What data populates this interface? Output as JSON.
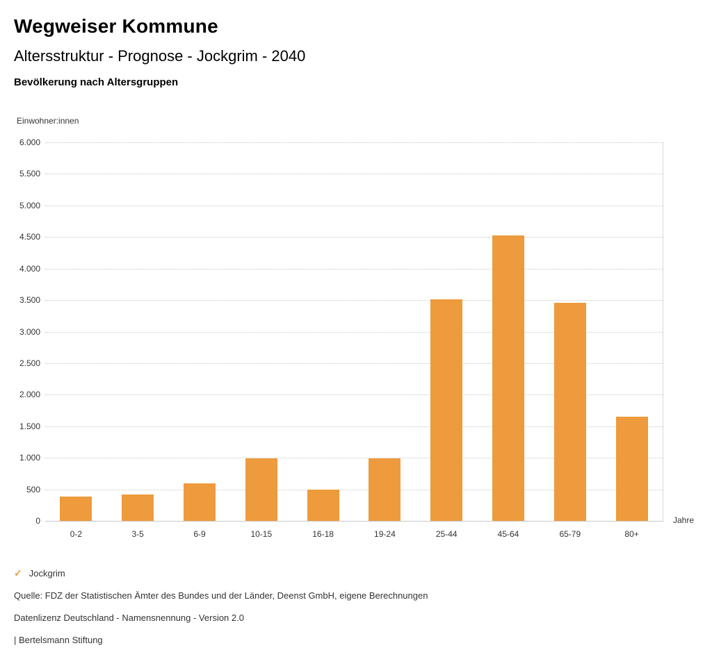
{
  "header": {
    "title": "Wegweiser Kommune",
    "subtitle": "Altersstruktur - Prognose - Jockgrim - 2040",
    "section_title": "Bevölkerung nach Altersgruppen"
  },
  "chart_data": {
    "type": "bar",
    "title": "Bevölkerung nach Altersgruppen",
    "ylabel": "Einwohner:innen",
    "xlabel": "Jahre",
    "categories": [
      "0-2",
      "3-5",
      "6-9",
      "10-15",
      "16-18",
      "19-24",
      "25-44",
      "45-64",
      "65-79",
      "80+"
    ],
    "series": [
      {
        "name": "Jockgrim",
        "values": [
          390,
          420,
          600,
          990,
          500,
          990,
          3510,
          4530,
          3460,
          1650
        ]
      }
    ],
    "ylim": [
      0,
      6000
    ],
    "ytick_step": 500,
    "ytick_labels": [
      "0",
      "500",
      "1.000",
      "1.500",
      "2.000",
      "2.500",
      "3.000",
      "3.500",
      "4.000",
      "4.500",
      "5.000",
      "5.500",
      "6.000"
    ],
    "grid": "dotted-horizontal",
    "legend_position": "bottom-left",
    "bar_color": "#ED9B3C"
  },
  "legend": {
    "check_icon": "✓",
    "label": "Jockgrim"
  },
  "footer": {
    "line1": "Quelle: FDZ der Statistischen Ämter des Bundes und der Länder, Deenst GmbH, eigene Berechnungen",
    "line2": "Datenlizenz Deutschland - Namensnennung - Version 2.0",
    "line3": "| Bertelsmann Stiftung"
  }
}
